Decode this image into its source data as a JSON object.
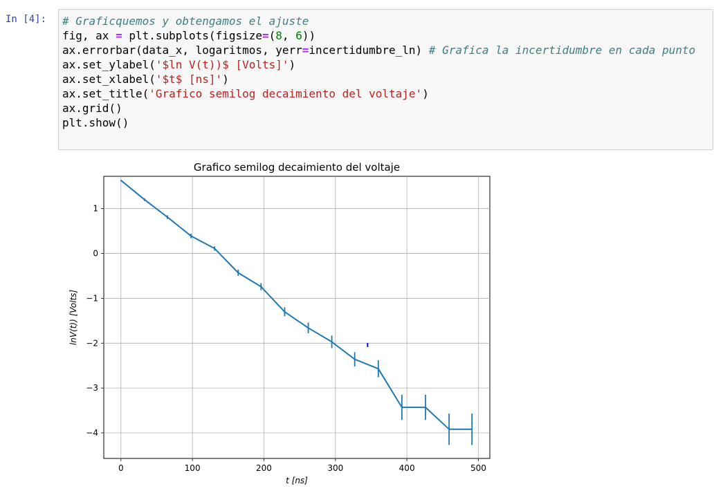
{
  "cell": {
    "prompt": "In [4]:",
    "code_lines": [
      [
        {
          "t": "# Graficquemos y obtengamos el ajuste",
          "c": "comment"
        }
      ],
      [
        {
          "t": "fig, ax ",
          "c": "plain"
        },
        {
          "t": "=",
          "c": "op"
        },
        {
          "t": " plt.subplots(figsize",
          "c": "plain"
        },
        {
          "t": "=",
          "c": "op"
        },
        {
          "t": "(",
          "c": "plain"
        },
        {
          "t": "8",
          "c": "num"
        },
        {
          "t": ", ",
          "c": "plain"
        },
        {
          "t": "6",
          "c": "num"
        },
        {
          "t": "))",
          "c": "plain"
        }
      ],
      [
        {
          "t": "ax.errorbar(data_x, logaritmos, yerr",
          "c": "plain"
        },
        {
          "t": "=",
          "c": "op"
        },
        {
          "t": "incertidumbre_ln) ",
          "c": "plain"
        },
        {
          "t": "# Grafica la incertidumbre en cada punto",
          "c": "comment"
        }
      ],
      [
        {
          "t": "ax.set_ylabel(",
          "c": "plain"
        },
        {
          "t": "'$ln V(t))$ [Volts]'",
          "c": "string"
        },
        {
          "t": ")",
          "c": "plain"
        }
      ],
      [
        {
          "t": "ax.set_xlabel(",
          "c": "plain"
        },
        {
          "t": "'$t$ [ns]'",
          "c": "string"
        },
        {
          "t": ")",
          "c": "plain"
        }
      ],
      [
        {
          "t": "ax.set_title(",
          "c": "plain"
        },
        {
          "t": "'Grafico semilog decaimiento del voltaje'",
          "c": "string"
        },
        {
          "t": ")",
          "c": "plain"
        }
      ],
      [
        {
          "t": "ax.grid()",
          "c": "plain"
        }
      ],
      [
        {
          "t": "plt.show()",
          "c": "plain"
        }
      ]
    ]
  },
  "chart_data": {
    "type": "line",
    "title": "Grafico semilog decaimiento del voltaje",
    "xlabel": "t [ns]",
    "ylabel": "lnV(t)) [Volts]",
    "xlim": [
      -24,
      516
    ],
    "ylim": [
      -4.57,
      1.72
    ],
    "xticks": [
      0,
      100,
      200,
      300,
      400,
      500
    ],
    "yticks": [
      1,
      0,
      -1,
      -2,
      -3,
      -4
    ],
    "ytick_labels": [
      "1",
      "0",
      "−1",
      "−2",
      "−3",
      "−4"
    ],
    "grid": true,
    "line_color": "#1f77b4",
    "series": [
      {
        "x": [
          0,
          33,
          65,
          98,
          131,
          164,
          196,
          229,
          262,
          295,
          327,
          360,
          393,
          426,
          459,
          491
        ],
        "y": [
          1.63,
          1.2,
          0.81,
          0.39,
          0.11,
          -0.43,
          -0.74,
          -1.3,
          -1.66,
          -1.97,
          -2.36,
          -2.57,
          -3.43,
          -3.43,
          -3.92,
          -3.92
        ],
        "yerr": [
          0.01,
          0.03,
          0.04,
          0.05,
          0.05,
          0.07,
          0.08,
          0.1,
          0.12,
          0.14,
          0.16,
          0.19,
          0.28,
          0.28,
          0.35,
          0.35
        ]
      }
    ],
    "extra_marks": [
      {
        "x": 345,
        "y": -2.04,
        "color": "#0000ff"
      }
    ]
  }
}
